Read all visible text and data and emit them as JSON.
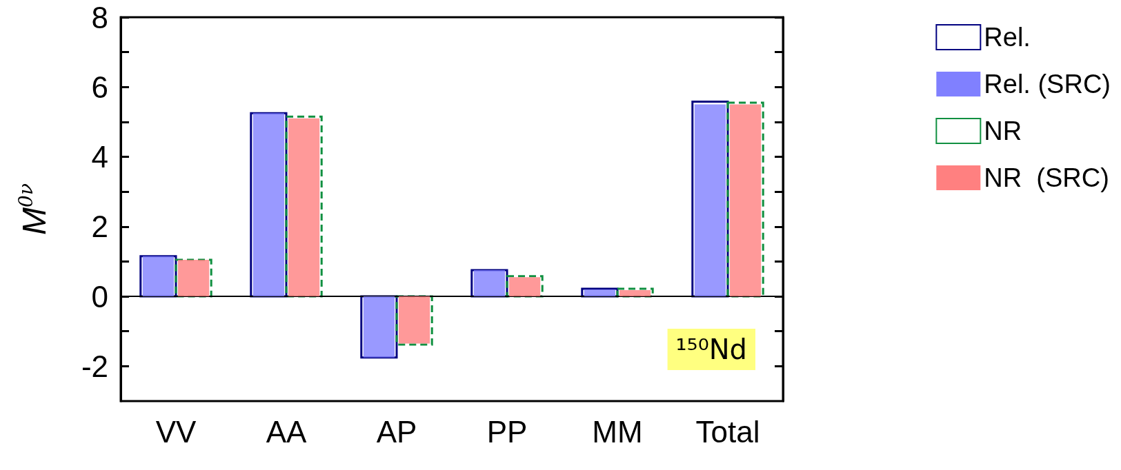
{
  "chart_data": {
    "type": "bar",
    "ylabel": "M$^{0ν}$",
    "categories": [
      "VV",
      "AA",
      "AP",
      "PP",
      "MM",
      "Total"
    ],
    "series": [
      {
        "name": "Rel.",
        "color": "#000080",
        "line_style": "solid",
        "values": [
          1.15,
          5.25,
          -1.75,
          0.75,
          0.22,
          5.58
        ]
      },
      {
        "name": "Rel. (SRC)",
        "color": "#8080ff",
        "values": [
          1.15,
          5.25,
          -1.75,
          0.75,
          0.2,
          5.5
        ]
      },
      {
        "name": "NR",
        "color": "#109040",
        "line_style": "dashed",
        "values": [
          1.05,
          5.15,
          -1.38,
          0.58,
          0.22,
          5.55
        ]
      },
      {
        "name": "NR  (SRC)",
        "color": "#ff8080",
        "values": [
          1.05,
          5.1,
          -1.35,
          0.55,
          0.18,
          5.5
        ]
      }
    ],
    "ylim": [
      -3,
      8
    ],
    "yticks": [
      -2,
      {
        "value": -1,
        "label": null
      },
      0,
      {
        "value": 1,
        "label": null
      },
      2,
      {
        "value": 3,
        "label": null
      },
      4,
      {
        "value": 5,
        "label": null
      },
      6,
      {
        "value": 7,
        "label": null
      },
      8
    ],
    "ref_lines": [
      {
        "axis": "y",
        "value": 0,
        "color": "#000000"
      }
    ],
    "annotations": [
      "¹⁵⁰Nd"
    ],
    "grid": false,
    "legend": "right"
  }
}
